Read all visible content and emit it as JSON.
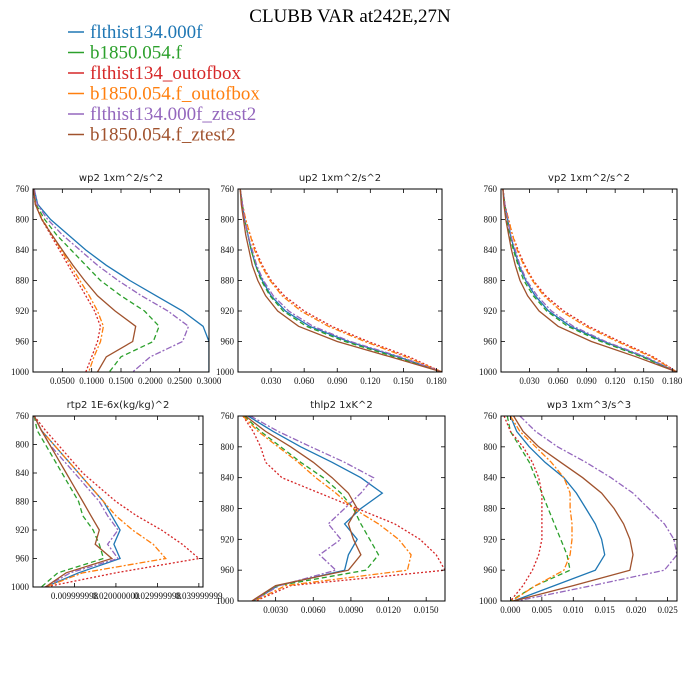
{
  "figure_title": "CLUBB VAR at242E,27N",
  "series": [
    {
      "name": "flthist134.000f",
      "color": "#1f77b4",
      "dash": "solid"
    },
    {
      "name": "b1850.054.f",
      "color": "#2ca02c",
      "dash": "dashed"
    },
    {
      "name": "flthist134_outofbox",
      "color": "#d62728",
      "dash": "dotted"
    },
    {
      "name": "b1850.054.f_outofbox",
      "color": "#ff7f0e",
      "dash": "dashdot"
    },
    {
      "name": "flthist134.000f_ztest2",
      "color": "#9467bd",
      "dash": "dashdot"
    },
    {
      "name": "b1850.054.f_ztest2",
      "color": "#a0522d",
      "dash": "solid"
    }
  ],
  "chart_data": [
    {
      "type": "line",
      "title": "wp2   1xm^2/s^2",
      "xlim": [
        0,
        0.3
      ],
      "ylim": [
        760,
        1000
      ],
      "y_inverted": true,
      "xticks": [
        0.05,
        0.1,
        0.15,
        0.2,
        0.25,
        0.3
      ],
      "xtick_labels": [
        "0.0500",
        "0.1000",
        "0.1500",
        "0.2000",
        "0.2500",
        "0.3000"
      ],
      "yticks": [
        760,
        800,
        840,
        880,
        920,
        960,
        1000
      ],
      "ytick_labels": [
        "760",
        "800",
        "840",
        "880",
        "920",
        "960",
        "1000"
      ],
      "levels": [
        760,
        780,
        800,
        820,
        840,
        860,
        880,
        900,
        920,
        940,
        960,
        980,
        1000
      ],
      "values": [
        [
          0.002,
          0.008,
          0.03,
          0.06,
          0.09,
          0.125,
          0.165,
          0.21,
          0.255,
          0.29,
          0.3,
          0.3,
          0.3
        ],
        [
          0.001,
          0.005,
          0.02,
          0.04,
          0.065,
          0.09,
          0.115,
          0.15,
          0.19,
          0.215,
          0.205,
          0.15,
          0.13
        ],
        [
          0.001,
          0.004,
          0.015,
          0.03,
          0.045,
          0.06,
          0.075,
          0.09,
          0.105,
          0.115,
          0.11,
          0.1,
          0.09
        ],
        [
          0.001,
          0.004,
          0.016,
          0.032,
          0.048,
          0.064,
          0.08,
          0.096,
          0.11,
          0.12,
          0.115,
          0.104,
          0.095
        ],
        [
          0.002,
          0.007,
          0.025,
          0.05,
          0.08,
          0.11,
          0.145,
          0.185,
          0.23,
          0.265,
          0.255,
          0.2,
          0.17
        ],
        [
          0.001,
          0.004,
          0.015,
          0.032,
          0.05,
          0.068,
          0.088,
          0.11,
          0.14,
          0.175,
          0.17,
          0.125,
          0.11
        ]
      ]
    },
    {
      "type": "line",
      "title": "up2   1xm^2/s^2",
      "xlim": [
        0,
        0.185
      ],
      "ylim": [
        760,
        1000
      ],
      "y_inverted": true,
      "xticks": [
        0.03,
        0.06,
        0.09,
        0.12,
        0.15,
        0.18
      ],
      "xtick_labels": [
        "0.030",
        "0.060",
        "0.090",
        "0.120",
        "0.150",
        "0.180"
      ],
      "yticks": [
        760,
        800,
        840,
        880,
        920,
        960,
        1000
      ],
      "ytick_labels": [
        "760",
        "800",
        "840",
        "880",
        "920",
        "960",
        "1000"
      ],
      "levels": [
        760,
        780,
        800,
        820,
        840,
        860,
        880,
        900,
        920,
        940,
        960,
        980,
        1000
      ],
      "values": [
        [
          0.002,
          0.004,
          0.006,
          0.009,
          0.012,
          0.016,
          0.022,
          0.03,
          0.043,
          0.065,
          0.1,
          0.145,
          0.185
        ],
        [
          0.002,
          0.004,
          0.006,
          0.009,
          0.012,
          0.016,
          0.021,
          0.029,
          0.041,
          0.062,
          0.097,
          0.142,
          0.185
        ],
        [
          0.002,
          0.004,
          0.007,
          0.011,
          0.016,
          0.022,
          0.03,
          0.042,
          0.06,
          0.085,
          0.118,
          0.155,
          0.185
        ],
        [
          0.002,
          0.004,
          0.007,
          0.011,
          0.015,
          0.021,
          0.029,
          0.04,
          0.057,
          0.082,
          0.115,
          0.152,
          0.185
        ],
        [
          0.002,
          0.004,
          0.006,
          0.009,
          0.013,
          0.017,
          0.023,
          0.032,
          0.046,
          0.068,
          0.102,
          0.147,
          0.185
        ],
        [
          0.002,
          0.003,
          0.005,
          0.007,
          0.01,
          0.013,
          0.018,
          0.025,
          0.036,
          0.055,
          0.09,
          0.138,
          0.185
        ]
      ]
    },
    {
      "type": "line",
      "title": "vp2   1xm^2/s^2",
      "xlim": [
        0,
        0.185
      ],
      "ylim": [
        760,
        1000
      ],
      "y_inverted": true,
      "xticks": [
        0.03,
        0.06,
        0.09,
        0.12,
        0.15,
        0.18
      ],
      "xtick_labels": [
        "0.030",
        "0.060",
        "0.090",
        "0.120",
        "0.150",
        "0.180"
      ],
      "yticks": [
        760,
        800,
        840,
        880,
        920,
        960,
        1000
      ],
      "ytick_labels": [
        "760",
        "800",
        "840",
        "880",
        "920",
        "960",
        "1000"
      ],
      "levels": [
        760,
        780,
        800,
        820,
        840,
        860,
        880,
        900,
        920,
        940,
        960,
        980,
        1000
      ],
      "values": [
        [
          0.002,
          0.004,
          0.007,
          0.01,
          0.014,
          0.019,
          0.026,
          0.036,
          0.05,
          0.073,
          0.108,
          0.15,
          0.185
        ],
        [
          0.002,
          0.004,
          0.006,
          0.009,
          0.013,
          0.018,
          0.024,
          0.034,
          0.048,
          0.07,
          0.105,
          0.148,
          0.185
        ],
        [
          0.002,
          0.004,
          0.008,
          0.012,
          0.018,
          0.025,
          0.034,
          0.047,
          0.066,
          0.092,
          0.125,
          0.16,
          0.185
        ],
        [
          0.002,
          0.004,
          0.008,
          0.012,
          0.017,
          0.024,
          0.033,
          0.045,
          0.063,
          0.089,
          0.122,
          0.158,
          0.185
        ],
        [
          0.002,
          0.004,
          0.007,
          0.01,
          0.015,
          0.02,
          0.027,
          0.038,
          0.053,
          0.076,
          0.11,
          0.152,
          0.185
        ],
        [
          0.002,
          0.003,
          0.005,
          0.008,
          0.011,
          0.015,
          0.02,
          0.028,
          0.04,
          0.06,
          0.095,
          0.142,
          0.185
        ]
      ]
    },
    {
      "type": "line",
      "title": "rtp2   1E-6x(kg/kg)^2",
      "xlim": [
        0,
        0.041
      ],
      "ylim": [
        760,
        1000
      ],
      "y_inverted": true,
      "xticks": [
        0.01,
        0.02,
        0.03,
        0.04
      ],
      "xtick_labels": [
        "0.009999998",
        "0.020000000",
        "0.029999998",
        "0.039999999"
      ],
      "yticks": [
        760,
        800,
        840,
        880,
        920,
        960,
        1000
      ],
      "ytick_labels": [
        "760",
        "800",
        "840",
        "880",
        "920",
        "960",
        "1000"
      ],
      "levels": [
        760,
        780,
        800,
        820,
        840,
        860,
        880,
        900,
        920,
        940,
        960,
        980,
        1000
      ],
      "values": [
        [
          0.0003,
          0.002,
          0.005,
          0.008,
          0.011,
          0.014,
          0.017,
          0.019,
          0.021,
          0.0195,
          0.021,
          0.011,
          0.003
        ],
        [
          0.0003,
          0.001,
          0.003,
          0.005,
          0.007,
          0.009,
          0.011,
          0.012,
          0.0145,
          0.016,
          0.017,
          0.006,
          0.002
        ],
        [
          0.0003,
          0.003,
          0.006,
          0.009,
          0.012,
          0.016,
          0.02,
          0.025,
          0.031,
          0.036,
          0.04,
          0.02,
          0.003
        ],
        [
          0.0003,
          0.002,
          0.005,
          0.008,
          0.011,
          0.014,
          0.017,
          0.02,
          0.024,
          0.029,
          0.032,
          0.012,
          0.003
        ],
        [
          0.0003,
          0.002,
          0.004,
          0.007,
          0.01,
          0.013,
          0.016,
          0.018,
          0.0205,
          0.018,
          0.0205,
          0.009,
          0.003
        ],
        [
          0.0003,
          0.002,
          0.004,
          0.006,
          0.008,
          0.01,
          0.012,
          0.014,
          0.016,
          0.015,
          0.019,
          0.008,
          0.003
        ]
      ]
    },
    {
      "type": "line",
      "title": "thlp2   1xK^2",
      "xlim": [
        0,
        0.0165
      ],
      "ylim": [
        760,
        1000
      ],
      "y_inverted": true,
      "xticks": [
        0.003,
        0.006,
        0.009,
        0.012,
        0.015
      ],
      "xtick_labels": [
        "0.0030",
        "0.0060",
        "0.0090",
        "0.0120",
        "0.0150"
      ],
      "yticks": [
        760,
        800,
        840,
        880,
        920,
        960,
        1000
      ],
      "ytick_labels": [
        "760",
        "800",
        "840",
        "880",
        "920",
        "960",
        "1000"
      ],
      "levels": [
        760,
        780,
        800,
        820,
        840,
        860,
        880,
        900,
        920,
        940,
        960,
        980,
        1000
      ],
      "values": [
        [
          0.0008,
          0.0028,
          0.005,
          0.0075,
          0.0098,
          0.0115,
          0.0098,
          0.0085,
          0.0095,
          0.0088,
          0.0085,
          0.0032,
          0.0012
        ],
        [
          0.0005,
          0.0018,
          0.0034,
          0.005,
          0.0068,
          0.0082,
          0.0092,
          0.0098,
          0.0105,
          0.0112,
          0.0102,
          0.0032,
          0.0012
        ],
        [
          0.0004,
          0.0012,
          0.0018,
          0.0022,
          0.0035,
          0.0065,
          0.0095,
          0.0125,
          0.0145,
          0.0158,
          0.0165,
          0.0042,
          0.0014
        ],
        [
          0.0004,
          0.0016,
          0.0032,
          0.0048,
          0.0062,
          0.0078,
          0.0092,
          0.0112,
          0.0128,
          0.0138,
          0.0135,
          0.0038,
          0.0013
        ],
        [
          0.001,
          0.0032,
          0.0058,
          0.0085,
          0.0108,
          0.0098,
          0.0085,
          0.0072,
          0.0082,
          0.0065,
          0.0078,
          0.0033,
          0.0012
        ],
        [
          0.0006,
          0.0022,
          0.0042,
          0.006,
          0.0075,
          0.0088,
          0.0095,
          0.0088,
          0.0092,
          0.0098,
          0.0088,
          0.003,
          0.0011
        ]
      ]
    },
    {
      "type": "line",
      "title": "wp3   1xm^3/s^3",
      "xlim": [
        -0.0015,
        0.0265
      ],
      "ylim": [
        760,
        1000
      ],
      "y_inverted": true,
      "xticks": [
        0,
        0.005,
        0.01,
        0.015,
        0.02,
        0.025
      ],
      "xtick_labels": [
        "0.000",
        "0.005",
        "0.010",
        "0.015",
        "0.020",
        "0.025"
      ],
      "yticks": [
        760,
        800,
        840,
        880,
        920,
        960,
        1000
      ],
      "ytick_labels": [
        "760",
        "800",
        "840",
        "880",
        "920",
        "960",
        "1000"
      ],
      "levels": [
        760,
        780,
        800,
        820,
        840,
        860,
        880,
        900,
        920,
        940,
        960,
        980,
        1000
      ],
      "values": [
        [
          0.0,
          0.001,
          0.003,
          0.0055,
          0.0085,
          0.0105,
          0.012,
          0.0135,
          0.0145,
          0.015,
          0.0135,
          0.007,
          0.0005
        ],
        [
          -0.0005,
          0.0,
          0.0015,
          0.003,
          0.004,
          0.005,
          0.006,
          0.007,
          0.008,
          0.009,
          0.0095,
          0.004,
          0.0
        ],
        [
          -0.001,
          0.0,
          0.002,
          0.0035,
          0.0045,
          0.005,
          0.005,
          0.005,
          0.005,
          0.0045,
          0.0035,
          0.002,
          0.0
        ],
        [
          0.0,
          0.0015,
          0.004,
          0.0065,
          0.0085,
          0.0095,
          0.0095,
          0.0098,
          0.0098,
          0.0095,
          0.0085,
          0.004,
          0.0002
        ],
        [
          0.0015,
          0.004,
          0.0075,
          0.012,
          0.016,
          0.0195,
          0.022,
          0.0245,
          0.026,
          0.0265,
          0.0245,
          0.013,
          0.001
        ],
        [
          0.0005,
          0.002,
          0.0045,
          0.008,
          0.0115,
          0.0145,
          0.0165,
          0.018,
          0.019,
          0.0195,
          0.019,
          0.01,
          0.0005
        ]
      ]
    }
  ]
}
